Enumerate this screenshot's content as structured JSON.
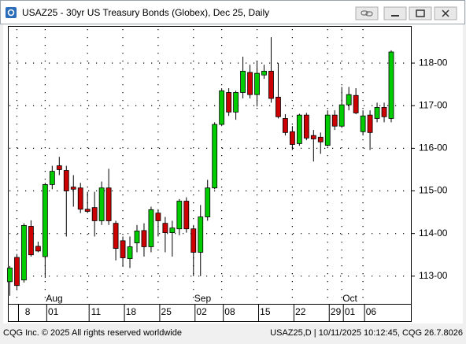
{
  "window_title": "USAZ25 - 30yr US Treasury Bonds (Globex), Dec 25, Daily",
  "footer_left": "CQG Inc. © 2025 All rights reserved worldwide",
  "footer_right": "USAZ25,D | 10/11/2025 10:12:45, CQG 26.7.8026",
  "chart_data": {
    "type": "candlestick",
    "categories": [
      null,
      "8",
      null,
      null,
      null,
      "01",
      null,
      null,
      null,
      null,
      null,
      "11",
      null,
      null,
      null,
      null,
      "18",
      null,
      null,
      null,
      null,
      "25",
      null,
      null,
      null,
      null,
      "02",
      null,
      null,
      null,
      "08",
      null,
      null,
      null,
      null,
      "15",
      null,
      null,
      null,
      null,
      "22",
      null,
      null,
      null,
      null,
      "29",
      null,
      "01",
      null,
      null,
      "06",
      null,
      null,
      null,
      null
    ],
    "month_labels": [
      {
        "index": 5,
        "label": "Aug"
      },
      {
        "index": 26,
        "label": "Sep"
      },
      {
        "index": 47,
        "label": "Oct"
      }
    ],
    "open": [
      112.87,
      113.44,
      112.91,
      114.17,
      113.7,
      113.46,
      115.15,
      115.59,
      115.48,
      115.09,
      115.07,
      114.57,
      114.61,
      114.3,
      115.07,
      114.24,
      113.83,
      113.41,
      113.78,
      114.07,
      113.69,
      114.48,
      114.24,
      114.02,
      114.11,
      114.76,
      114.11,
      113.56,
      114.39,
      115.07,
      116.56,
      117.31,
      116.85,
      117.31,
      117.78,
      117.26,
      117.72,
      117.81,
      117.2,
      116.7,
      116.39,
      116.11,
      116.78,
      116.3,
      116.26,
      116.07,
      116.78,
      116.52,
      117.02,
      117.24,
      116.39,
      116.78,
      116.7,
      116.96,
      116.7
    ],
    "high": [
      113.24,
      113.52,
      114.24,
      114.31,
      113.81,
      115.19,
      115.59,
      115.8,
      115.59,
      115.37,
      115.19,
      114.98,
      114.98,
      115.22,
      115.52,
      114.3,
      113.93,
      113.93,
      114.2,
      114.24,
      114.63,
      114.57,
      114.39,
      114.3,
      114.81,
      114.85,
      114.2,
      114.67,
      115.26,
      116.61,
      117.41,
      117.41,
      117.35,
      118.15,
      117.96,
      118.04,
      117.96,
      118.61,
      118.0,
      116.8,
      116.52,
      116.81,
      116.83,
      116.43,
      116.37,
      116.89,
      116.89,
      117.44,
      117.44,
      117.41,
      116.89,
      116.89,
      117.07,
      117.07,
      118.3
    ],
    "low": [
      112.54,
      112.67,
      112.85,
      113.46,
      113.56,
      112.96,
      115.04,
      115.37,
      113.93,
      114.63,
      114.48,
      114.48,
      113.93,
      114.2,
      114.2,
      113.37,
      113.22,
      113.19,
      113.56,
      113.46,
      113.56,
      113.93,
      113.56,
      113.46,
      113.96,
      114.02,
      113.0,
      113.0,
      114.3,
      115.04,
      116.52,
      116.76,
      116.67,
      117.17,
      117.17,
      116.98,
      117.63,
      117.07,
      116.7,
      116.3,
      115.96,
      116.06,
      116.19,
      115.69,
      115.87,
      116.04,
      116.43,
      116.48,
      116.89,
      116.8,
      116.3,
      115.96,
      116.61,
      116.61,
      116.61
    ],
    "close": [
      113.19,
      112.78,
      114.19,
      113.5,
      113.59,
      115.15,
      115.46,
      115.5,
      115.0,
      115.04,
      114.57,
      114.52,
      114.3,
      115.07,
      114.3,
      113.65,
      113.43,
      113.69,
      114.06,
      113.69,
      114.56,
      114.3,
      114.02,
      114.13,
      114.76,
      114.11,
      113.56,
      114.39,
      115.07,
      116.56,
      117.35,
      116.85,
      117.31,
      117.81,
      117.26,
      117.76,
      117.81,
      117.17,
      116.74,
      116.37,
      116.09,
      116.78,
      116.24,
      116.22,
      116.15,
      116.78,
      116.52,
      117.02,
      117.26,
      116.83,
      116.76,
      116.37,
      116.96,
      116.74,
      118.26
    ],
    "up_color": "#00cc00",
    "down_color": "#cc0000",
    "ylim": [
      112.35,
      118.87
    ],
    "yticks": [
      {
        "value": 113,
        "label": "113-00"
      },
      {
        "value": 114,
        "label": "114-00"
      },
      {
        "value": 115,
        "label": "115-00"
      },
      {
        "value": 116,
        "label": "116-00"
      },
      {
        "value": 117,
        "label": "117-00"
      },
      {
        "value": 118,
        "label": "118-00"
      }
    ],
    "grid": true
  }
}
